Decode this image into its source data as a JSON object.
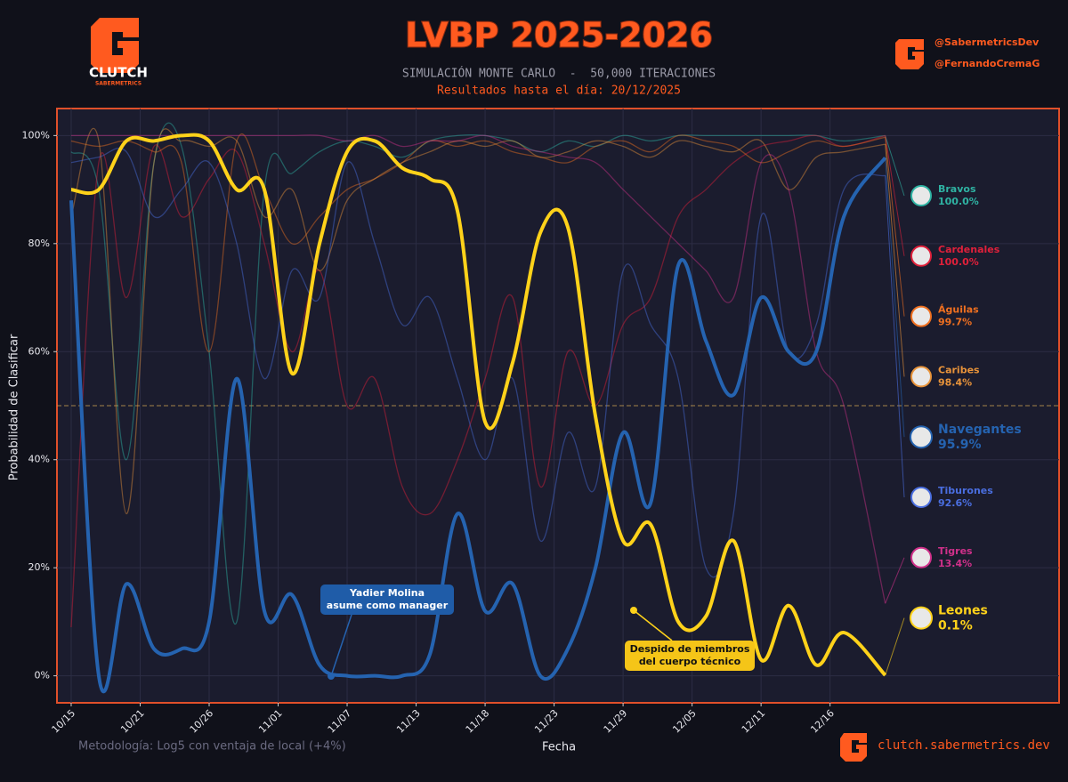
{
  "header": {
    "logo_text": "CLUTCH",
    "logo_sub": "SABERMETRICS",
    "handles": [
      "@SabermetricsDev",
      "@FernandoCremaG"
    ]
  },
  "footer": {
    "methodology": "Metodología: Log5 con ventaja de local (+4%)",
    "site": "clutch.sabermetrics.dev"
  },
  "chart_data": {
    "type": "line",
    "title": "LVBP 2025-2026",
    "subtitle": "SIMULACIÓN MONTE CARLO  -  50,000 ITERACIONES",
    "subtitle2": "Resultados hasta el día: 20/12/2025",
    "x_label": "Fecha",
    "y_label": "Probabilidad de Clasificar",
    "x": [
      0,
      2,
      4,
      6,
      8,
      10,
      12,
      14,
      16,
      18,
      20,
      22,
      24,
      26,
      28,
      30,
      32,
      34,
      36,
      38,
      40,
      42,
      44,
      46,
      48,
      50,
      52,
      54,
      56,
      59
    ],
    "xlim": [
      -1.03,
      71.6
    ],
    "xticks": [
      {
        "value": 0,
        "label": "10/15"
      },
      {
        "value": 5,
        "label": "10/21"
      },
      {
        "value": 10,
        "label": "10/26"
      },
      {
        "value": 15,
        "label": "11/01"
      },
      {
        "value": 20,
        "label": "11/07"
      },
      {
        "value": 25,
        "label": "11/13"
      },
      {
        "value": 30,
        "label": "11/18"
      },
      {
        "value": 35,
        "label": "11/23"
      },
      {
        "value": 40,
        "label": "11/29"
      },
      {
        "value": 45,
        "label": "12/05"
      },
      {
        "value": 50,
        "label": "12/11"
      },
      {
        "value": 55,
        "label": "12/16"
      }
    ],
    "ylim": [
      -5,
      105
    ],
    "yticks": [
      {
        "value": 0,
        "label": "0%"
      },
      {
        "value": 20,
        "label": "20%"
      },
      {
        "value": 40,
        "label": "40%"
      },
      {
        "value": 60,
        "label": "60%"
      },
      {
        "value": 80,
        "label": "80%"
      },
      {
        "value": 100,
        "label": "100%"
      }
    ],
    "grid": true,
    "reference_line": 50,
    "series": [
      {
        "name": "Bravos",
        "color": "#2fb3a3",
        "highlight": false,
        "values": [
          97,
          90,
          40,
          95,
          98,
          60,
          10,
          90,
          93,
          97,
          99,
          98,
          96,
          99,
          100,
          100,
          99,
          97,
          99,
          98,
          100,
          99,
          100,
          100,
          100,
          100,
          100,
          100,
          99,
          100
        ],
        "value_labels": [
          null,
          null,
          null,
          null,
          null,
          null,
          null,
          null,
          null,
          null,
          null,
          null,
          null,
          null,
          null,
          null,
          null,
          null,
          null,
          null,
          null,
          null,
          null,
          null,
          null,
          null,
          null,
          null,
          null,
          "100.0%"
        ]
      },
      {
        "name": "Cardenales",
        "color": "#e0203a",
        "highlight": false,
        "values": [
          9,
          95,
          70,
          98,
          85,
          92,
          97,
          80,
          60,
          75,
          50,
          55,
          35,
          30,
          40,
          55,
          70,
          35,
          60,
          50,
          65,
          70,
          85,
          90,
          95,
          98,
          99,
          100,
          98,
          100
        ],
        "value_labels": [
          null,
          null,
          null,
          null,
          null,
          null,
          null,
          null,
          null,
          null,
          null,
          null,
          null,
          null,
          null,
          null,
          null,
          null,
          null,
          null,
          null,
          null,
          null,
          null,
          null,
          null,
          null,
          null,
          null,
          "100.0%"
        ]
      },
      {
        "name": "Águilas",
        "color": "#f07020",
        "highlight": false,
        "values": [
          99,
          98,
          99,
          97,
          95,
          60,
          99,
          90,
          80,
          85,
          90,
          92,
          95,
          99,
          98,
          99,
          97,
          96,
          95,
          98,
          99,
          97,
          100,
          99,
          98,
          95,
          97,
          99,
          98,
          99.7
        ],
        "value_labels": [
          null,
          null,
          null,
          null,
          null,
          null,
          null,
          null,
          null,
          null,
          null,
          null,
          null,
          null,
          null,
          null,
          null,
          null,
          null,
          null,
          null,
          null,
          null,
          null,
          null,
          null,
          null,
          null,
          null,
          "99.7%"
        ]
      },
      {
        "name": "Caribes",
        "color": "#e8933a",
        "highlight": false,
        "values": [
          85,
          99,
          30,
          95,
          99,
          98,
          99,
          85,
          90,
          75,
          88,
          92,
          95,
          97,
          99,
          98,
          99,
          96,
          97,
          99,
          98,
          96,
          99,
          98,
          97,
          99,
          90,
          96,
          97,
          98.4
        ],
        "value_labels": [
          null,
          null,
          null,
          null,
          null,
          null,
          null,
          null,
          null,
          null,
          null,
          null,
          null,
          null,
          null,
          null,
          null,
          null,
          null,
          null,
          null,
          null,
          null,
          null,
          null,
          null,
          null,
          null,
          null,
          "98.4%"
        ]
      },
      {
        "name": "Navegantes",
        "color": "#2563b0",
        "highlight": true,
        "values": [
          88,
          0,
          17,
          5,
          5,
          10,
          55,
          12,
          15,
          2,
          0,
          0,
          0,
          4,
          30,
          12,
          17,
          0,
          5,
          20,
          45,
          32,
          76,
          62,
          52,
          70,
          60,
          60,
          85,
          95.9
        ],
        "value_labels": [
          null,
          null,
          null,
          null,
          null,
          null,
          null,
          null,
          null,
          null,
          null,
          null,
          null,
          null,
          null,
          null,
          null,
          null,
          null,
          null,
          null,
          null,
          null,
          null,
          null,
          null,
          null,
          null,
          null,
          "95.9%"
        ]
      },
      {
        "name": "Tiburones",
        "color": "#4a6ee0",
        "highlight": false,
        "values": [
          95,
          96,
          97,
          85,
          90,
          95,
          80,
          55,
          75,
          70,
          95,
          80,
          65,
          70,
          55,
          40,
          55,
          25,
          45,
          35,
          75,
          65,
          55,
          20,
          30,
          85,
          60,
          65,
          90,
          92.6
        ],
        "value_labels": [
          null,
          null,
          null,
          null,
          null,
          null,
          null,
          null,
          null,
          null,
          null,
          null,
          null,
          null,
          null,
          null,
          null,
          null,
          null,
          null,
          null,
          null,
          null,
          null,
          null,
          null,
          null,
          null,
          null,
          "92.6%"
        ]
      },
      {
        "name": "Tigres",
        "color": "#d0308a",
        "highlight": false,
        "values": [
          100,
          100,
          100,
          100,
          100,
          100,
          100,
          100,
          100,
          100,
          99,
          100,
          98,
          99,
          99,
          100,
          98,
          97,
          96,
          95,
          90,
          85,
          80,
          75,
          70,
          95,
          90,
          60,
          50,
          13.4
        ],
        "value_labels": [
          null,
          null,
          null,
          null,
          null,
          null,
          null,
          null,
          null,
          null,
          null,
          null,
          null,
          null,
          null,
          null,
          null,
          null,
          null,
          null,
          null,
          null,
          null,
          null,
          null,
          null,
          null,
          null,
          null,
          "13.4%"
        ]
      },
      {
        "name": "Leones",
        "color": "#ffd21a",
        "highlight": true,
        "values": [
          90,
          90,
          99,
          99,
          100,
          99,
          90,
          90,
          56,
          80,
          97,
          99,
          94,
          92,
          86,
          47,
          58,
          82,
          83,
          48,
          25,
          28,
          10,
          11,
          25,
          3,
          13,
          2,
          8,
          0.1
        ],
        "value_labels": [
          null,
          null,
          null,
          null,
          null,
          null,
          null,
          null,
          null,
          null,
          null,
          null,
          null,
          null,
          null,
          null,
          null,
          null,
          null,
          null,
          null,
          null,
          null,
          null,
          null,
          null,
          null,
          null,
          null,
          "0.1%"
        ]
      }
    ],
    "annotations": [
      {
        "lines": [
          "Yadier Molina",
          "asume como manager"
        ]
      },
      {
        "lines": [
          "Despido de miembros",
          "del cuerpo técnico"
        ]
      }
    ]
  }
}
